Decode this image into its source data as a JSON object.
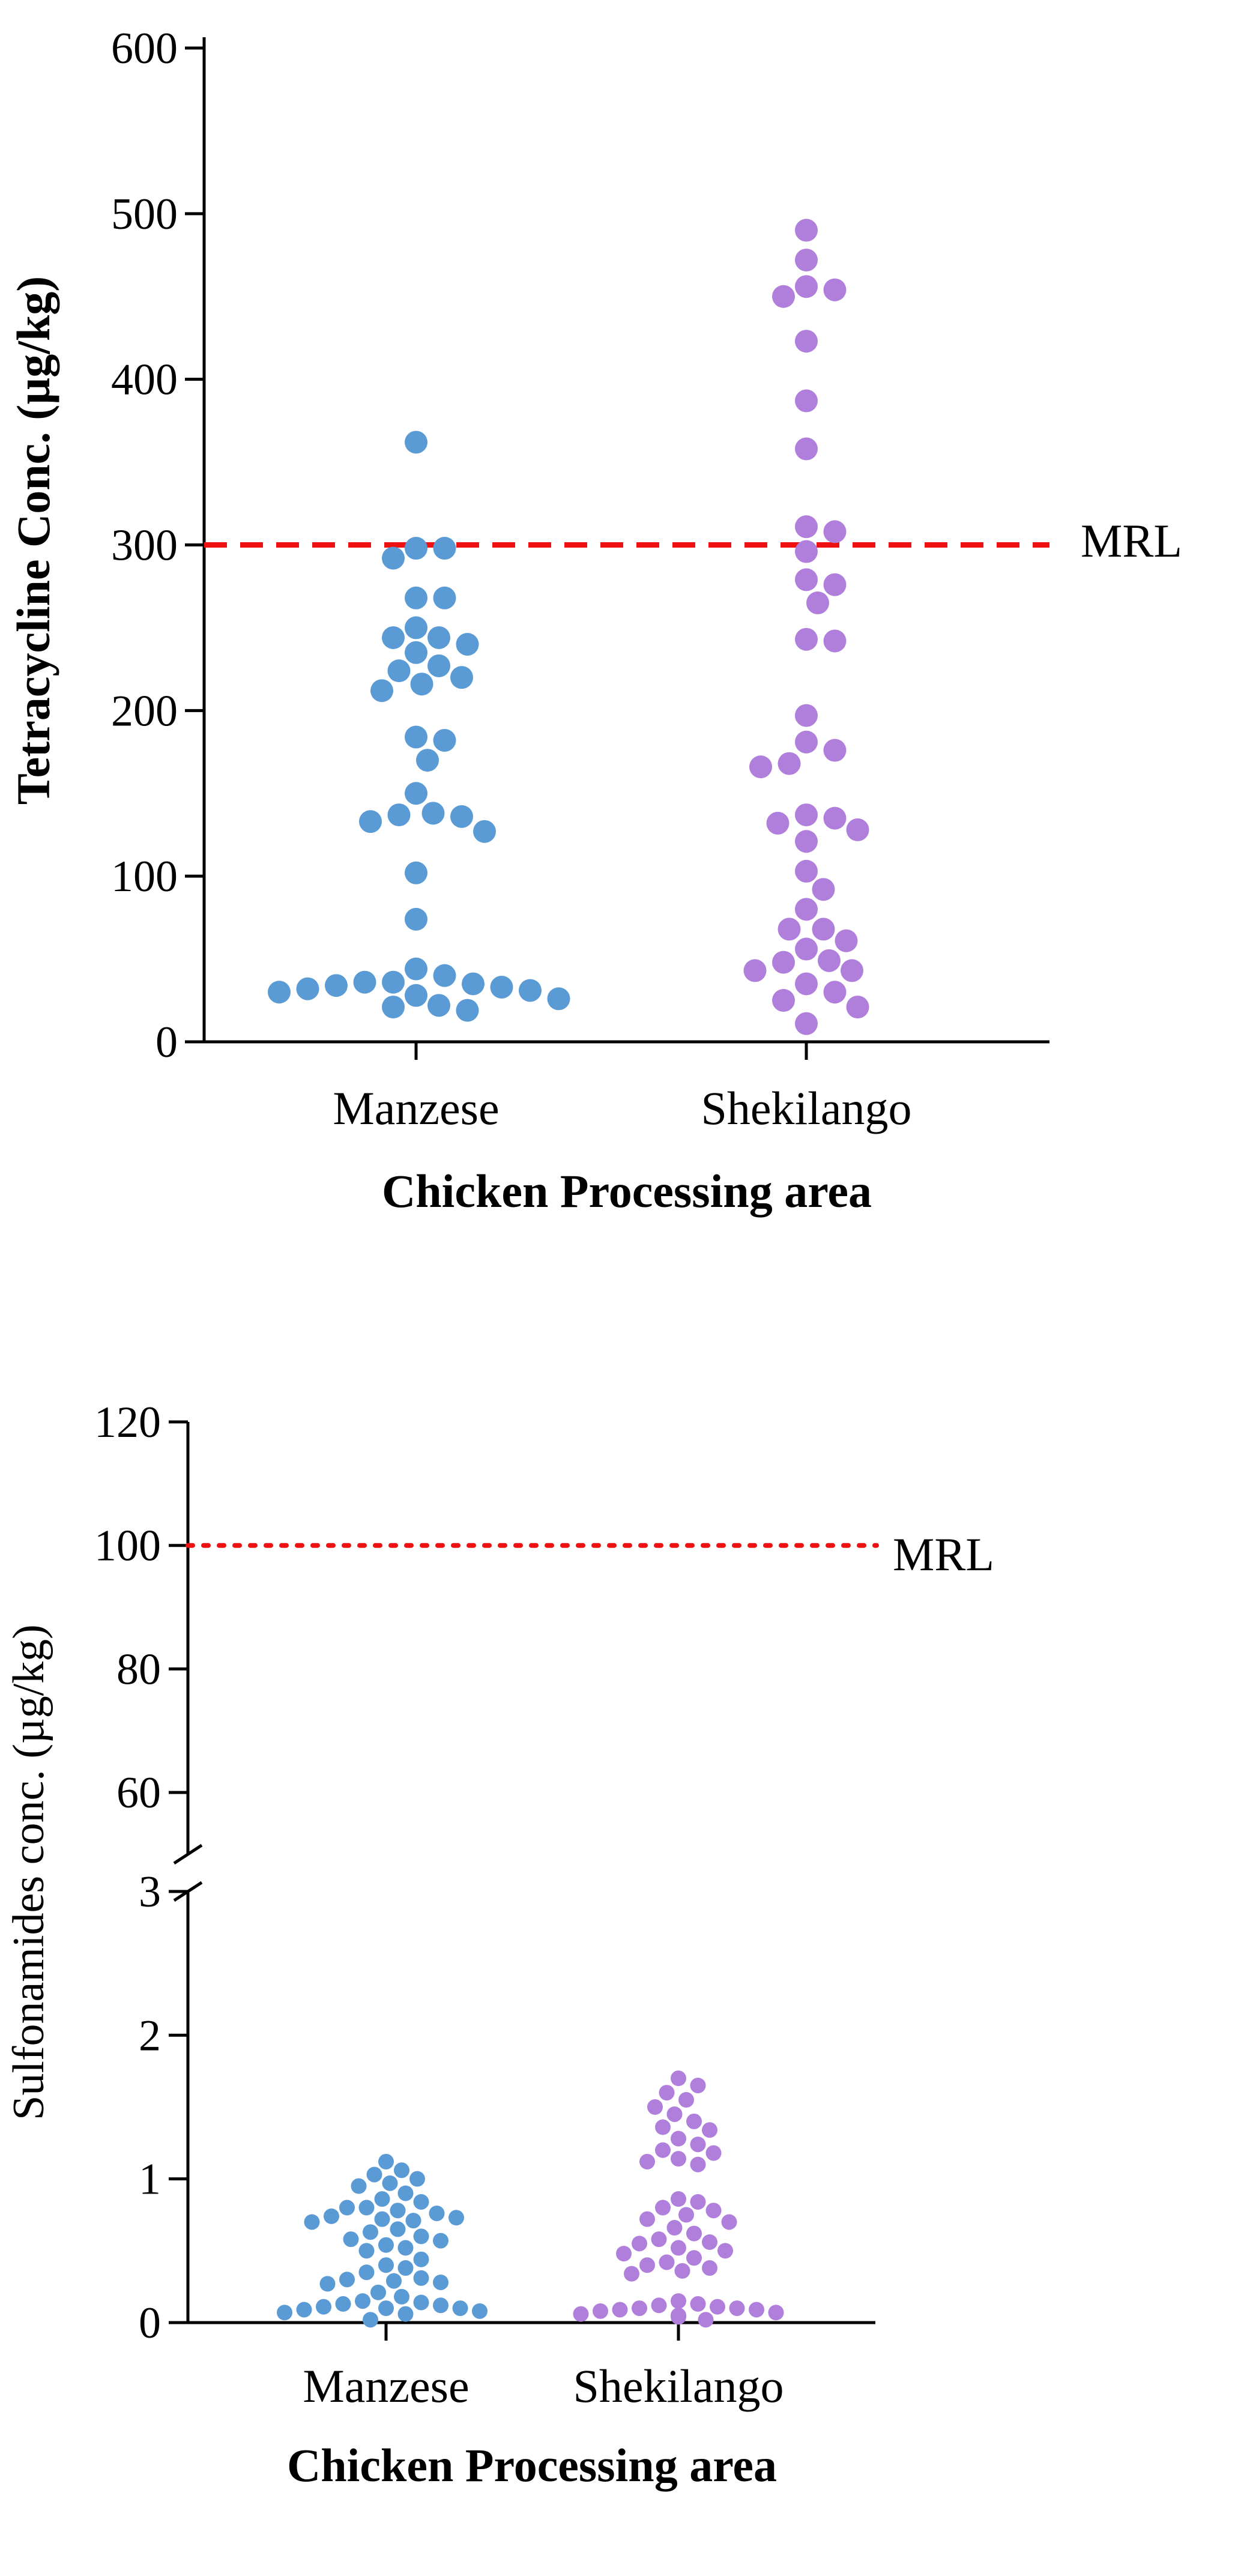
{
  "chart_data": [
    {
      "type": "scatter",
      "ylabel": "Tetracycline Conc. (µg/kg)",
      "xlabel": "Chicken Processing area",
      "categories": [
        "Manzese",
        "Shekilango"
      ],
      "ylim": [
        0,
        600
      ],
      "yticks": [
        0,
        100,
        200,
        300,
        400,
        500,
        600
      ],
      "reference_line": {
        "label": "MRL",
        "value": 300,
        "style": "dashed",
        "color": "#ee1111"
      },
      "colors": {
        "Manzese": "#5b9bd5",
        "Shekilango": "#b07fdc"
      },
      "series": [
        {
          "name": "Manzese",
          "values": [
            362,
            298,
            298,
            292,
            268,
            268,
            250,
            244,
            244,
            240,
            235,
            227,
            224,
            220,
            216,
            212,
            184,
            182,
            170,
            150,
            138,
            137,
            136,
            133,
            127,
            102,
            74,
            44,
            40,
            36,
            36,
            35,
            34,
            33,
            32,
            31,
            30,
            28,
            26,
            22,
            21,
            19
          ]
        },
        {
          "name": "Shekilango",
          "values": [
            490,
            472,
            456,
            454,
            450,
            423,
            387,
            358,
            311,
            308,
            296,
            279,
            276,
            265,
            243,
            242,
            197,
            181,
            176,
            168,
            166,
            137,
            135,
            132,
            128,
            121,
            103,
            92,
            80,
            68,
            68,
            61,
            56,
            49,
            48,
            43,
            43,
            35,
            30,
            25,
            21,
            11
          ]
        }
      ]
    },
    {
      "type": "scatter",
      "ylabel": "Sulfonamides conc. (µg/kg)",
      "xlabel": "Chicken Processing area",
      "categories": [
        "Manzese",
        "Shekilango"
      ],
      "axis_break": {
        "lower_range": [
          0,
          3
        ],
        "upper_range": [
          50,
          120
        ]
      },
      "yticks_lower": [
        0,
        1,
        2,
        3
      ],
      "yticks_upper": [
        60,
        80,
        100,
        120
      ],
      "reference_line": {
        "label": "MRL",
        "value": 100,
        "style": "dotted",
        "color": "#ee1111"
      },
      "colors": {
        "Manzese": "#5b9bd5",
        "Shekilango": "#b07fdc"
      },
      "series": [
        {
          "name": "Manzese",
          "values": [
            1.12,
            1.06,
            1.03,
            1.0,
            0.97,
            0.95,
            0.9,
            0.86,
            0.84,
            0.8,
            0.8,
            0.78,
            0.76,
            0.74,
            0.73,
            0.72,
            0.71,
            0.7,
            0.65,
            0.63,
            0.6,
            0.58,
            0.57,
            0.54,
            0.52,
            0.5,
            0.44,
            0.4,
            0.38,
            0.35,
            0.31,
            0.3,
            0.29,
            0.28,
            0.27,
            0.21,
            0.18,
            0.15,
            0.14,
            0.13,
            0.12,
            0.11,
            0.1,
            0.1,
            0.09,
            0.08,
            0.07,
            0.06,
            0.02
          ]
        },
        {
          "name": "Shekilango",
          "values": [
            1.7,
            1.65,
            1.6,
            1.55,
            1.5,
            1.45,
            1.4,
            1.36,
            1.34,
            1.28,
            1.24,
            1.2,
            1.18,
            1.14,
            1.12,
            1.1,
            0.86,
            0.84,
            0.8,
            0.78,
            0.75,
            0.72,
            0.7,
            0.66,
            0.62,
            0.58,
            0.56,
            0.55,
            0.52,
            0.5,
            0.48,
            0.45,
            0.42,
            0.4,
            0.38,
            0.36,
            0.34,
            0.15,
            0.13,
            0.12,
            0.11,
            0.1,
            0.1,
            0.09,
            0.09,
            0.08,
            0.07,
            0.06,
            0.05,
            0.04,
            0.02
          ]
        }
      ]
    }
  ]
}
